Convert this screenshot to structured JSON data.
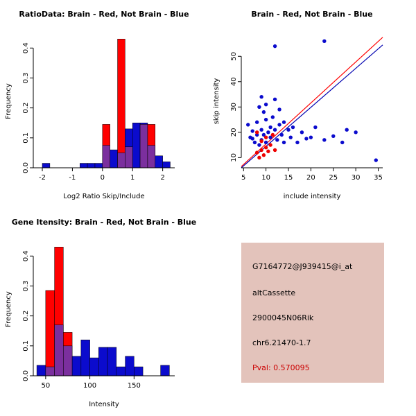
{
  "figure": {
    "background": "#ffffff"
  },
  "colors": {
    "axis": "#000000",
    "hist_red": "#ff0000",
    "hist_blue": "#0b0bcd",
    "hist_overlap": "#7b2f9e",
    "scatter_blue": "#0b0bcd",
    "scatter_red": "#ee0000",
    "line_red": "#ff0000",
    "line_blue": "#0000b0",
    "info_bg": "#e3c3bb",
    "pval": "#cc0000"
  },
  "chart_data": [
    {
      "type": "histogram",
      "title": "RatioData: Brain - Red, Not Brain - Blue",
      "xlabel": "Log2 Ratio Skip/Include",
      "ylabel": "Frequency",
      "xlim": [
        -2.3,
        2.4
      ],
      "ylim": [
        0,
        0.44
      ],
      "xticks": [
        -2,
        -1,
        0,
        1,
        2
      ],
      "yticks": [
        0,
        0.1,
        0.2,
        0.3,
        0.4
      ],
      "ytick_labels": [
        "0.0",
        "0.1",
        "0.2",
        "0.3",
        "0.4"
      ],
      "bin_width": 0.25,
      "bins": [
        {
          "x0": -2.0,
          "red": 0,
          "blue": 0.015
        },
        {
          "x0": -0.75,
          "red": 0,
          "blue": 0.015
        },
        {
          "x0": -0.5,
          "red": 0,
          "blue": 0.015
        },
        {
          "x0": -0.25,
          "red": 0,
          "blue": 0.015
        },
        {
          "x0": 0.0,
          "red": 0.145,
          "blue": 0.075
        },
        {
          "x0": 0.25,
          "red": 0,
          "blue": 0.06
        },
        {
          "x0": 0.5,
          "red": 0.43,
          "blue": 0.05
        },
        {
          "x0": 0.75,
          "red": 0.07,
          "blue": 0.13
        },
        {
          "x0": 1.0,
          "red": 0,
          "blue": 0.15
        },
        {
          "x0": 1.25,
          "red": 0.145,
          "blue": 0.15
        },
        {
          "x0": 1.5,
          "red": 0.145,
          "blue": 0.075
        },
        {
          "x0": 1.75,
          "red": 0,
          "blue": 0.04
        },
        {
          "x0": 2.0,
          "red": 0,
          "blue": 0.02
        }
      ],
      "legend_note": "Brain - Red, Not Brain - Blue"
    },
    {
      "type": "scatter",
      "title": "Brain - Red, Not Brain - Blue",
      "xlabel": "include intensity",
      "ylabel": "skip intensity",
      "xlim": [
        4.5,
        36
      ],
      "ylim": [
        6,
        58
      ],
      "xticks": [
        5,
        10,
        15,
        20,
        25,
        30,
        35
      ],
      "yticks": [
        10,
        20,
        30,
        40,
        50
      ],
      "series": [
        {
          "name": "Not Brain",
          "color": "scatter_blue",
          "points": [
            [
              6,
              23
            ],
            [
              6.5,
              18
            ],
            [
              7,
              17.5
            ],
            [
              7,
              20.5
            ],
            [
              7.5,
              16
            ],
            [
              8,
              19
            ],
            [
              8,
              24
            ],
            [
              8.5,
              30
            ],
            [
              8.5,
              15
            ],
            [
              9,
              21
            ],
            [
              9,
              17
            ],
            [
              9,
              34
            ],
            [
              9.5,
              28
            ],
            [
              9.5,
              19
            ],
            [
              10,
              25
            ],
            [
              10,
              16
            ],
            [
              10,
              31
            ],
            [
              10.5,
              20
            ],
            [
              11,
              22
            ],
            [
              11,
              18
            ],
            [
              11.5,
              26
            ],
            [
              12,
              54
            ],
            [
              12,
              21
            ],
            [
              12,
              33
            ],
            [
              12.5,
              17
            ],
            [
              13,
              23
            ],
            [
              13,
              29
            ],
            [
              13.5,
              19
            ],
            [
              14,
              16
            ],
            [
              14,
              24
            ],
            [
              15,
              21
            ],
            [
              15.5,
              18
            ],
            [
              16,
              22
            ],
            [
              17,
              16
            ],
            [
              18,
              20
            ],
            [
              19,
              17.5
            ],
            [
              20,
              18
            ],
            [
              21,
              22
            ],
            [
              23,
              56
            ],
            [
              23,
              17
            ],
            [
              25,
              18.5
            ],
            [
              27,
              16
            ],
            [
              28,
              21
            ],
            [
              30,
              20
            ],
            [
              34.5,
              9
            ]
          ]
        },
        {
          "name": "Brain",
          "color": "scatter_red",
          "points": [
            [
              8,
              12
            ],
            [
              8.5,
              10
            ],
            [
              9,
              13
            ],
            [
              9,
              16.5
            ],
            [
              9.5,
              11
            ],
            [
              10,
              14
            ],
            [
              10,
              18
            ],
            [
              10.5,
              12.5
            ],
            [
              11,
              15
            ],
            [
              11.5,
              19
            ],
            [
              12,
              13
            ],
            [
              8,
              20
            ]
          ]
        }
      ],
      "lines": [
        {
          "color": "line_red",
          "x1": 4.5,
          "y1": 6.5,
          "x2": 36,
          "y2": 57.5
        },
        {
          "color": "line_blue",
          "x1": 4.5,
          "y1": 6.0,
          "x2": 36,
          "y2": 54.5
        }
      ]
    },
    {
      "type": "histogram",
      "title": "Gene Itensity: Brain - Red, Not Brain - Blue",
      "xlabel": "Intensity",
      "ylabel": "Frequency",
      "xlim": [
        36,
        196
      ],
      "ylim": [
        0,
        0.44
      ],
      "xticks": [
        50,
        100,
        150
      ],
      "yticks": [
        0,
        0.1,
        0.2,
        0.3,
        0.4
      ],
      "ytick_labels": [
        "0.0",
        "0.1",
        "0.2",
        "0.3",
        "0.4"
      ],
      "bin_width": 10,
      "bins": [
        {
          "x0": 40,
          "red": 0,
          "blue": 0.035
        },
        {
          "x0": 50,
          "red": 0.285,
          "blue": 0.03
        },
        {
          "x0": 60,
          "red": 0.43,
          "blue": 0.17
        },
        {
          "x0": 70,
          "red": 0.145,
          "blue": 0.1
        },
        {
          "x0": 80,
          "red": 0,
          "blue": 0.065
        },
        {
          "x0": 90,
          "red": 0,
          "blue": 0.12
        },
        {
          "x0": 100,
          "red": 0,
          "blue": 0.06
        },
        {
          "x0": 110,
          "red": 0,
          "blue": 0.095
        },
        {
          "x0": 120,
          "red": 0,
          "blue": 0.095
        },
        {
          "x0": 130,
          "red": 0,
          "blue": 0.03
        },
        {
          "x0": 140,
          "red": 0,
          "blue": 0.065
        },
        {
          "x0": 150,
          "red": 0,
          "blue": 0.03
        },
        {
          "x0": 180,
          "red": 0,
          "blue": 0.035
        }
      ],
      "legend_note": "Brain - Red, Not Brain - Blue"
    }
  ],
  "info_panel": {
    "probe_id": "G7164772@J939415@i_at",
    "event_type": "altCassette",
    "gene_symbol": "2900045N06Rik",
    "location": "chr6.21470-1.7",
    "pval_label": "Pval: 0.570095"
  }
}
